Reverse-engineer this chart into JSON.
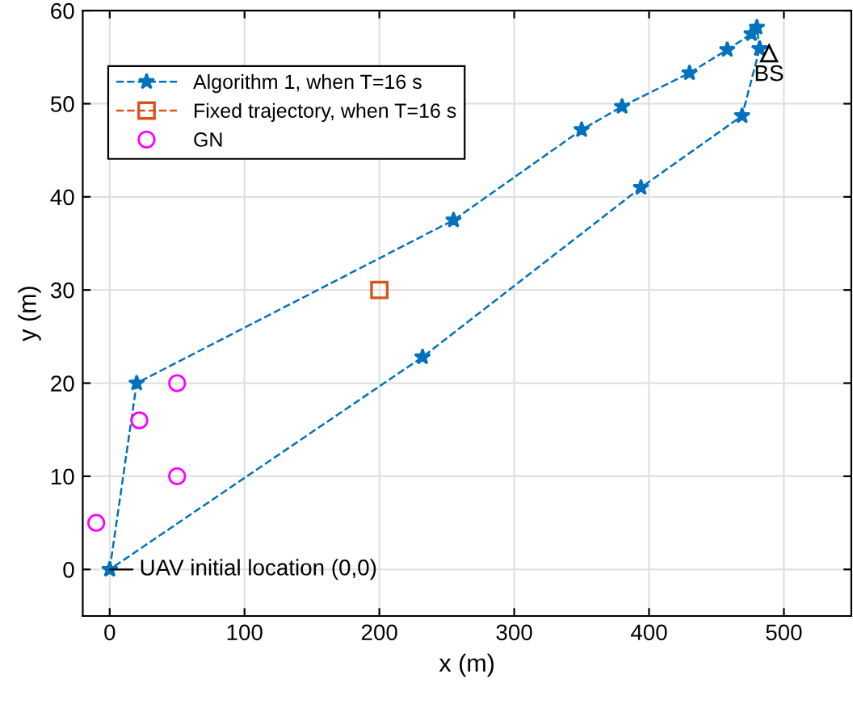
{
  "chart_data": {
    "type": "line",
    "xlabel": "x (m)",
    "ylabel": "y (m)",
    "xlim": [
      -20,
      550
    ],
    "ylim": [
      -5,
      60
    ],
    "xticks": [
      0,
      100,
      200,
      300,
      400,
      500
    ],
    "yticks": [
      0,
      10,
      20,
      30,
      40,
      50,
      60
    ],
    "grid": true,
    "legend": "top left",
    "series": [
      {
        "name": "Algorithm 1, when T=16 s",
        "color": "#0072bd",
        "marker": "star",
        "line_style": "dashed",
        "x": [
          0,
          20,
          255,
          350,
          380,
          430,
          458,
          476,
          480,
          482
        ],
        "values": [
          0,
          20,
          37.5,
          47.2,
          49.7,
          53.3,
          55.8,
          57.5,
          58.2,
          55.9
        ]
      },
      {
        "color": "#0072bd",
        "marker": "star",
        "line_style": "dashed",
        "x": [
          482,
          469,
          394,
          232,
          0
        ],
        "values": [
          55.9,
          48.7,
          41,
          22.8,
          0
        ]
      },
      {
        "name": "Fixed trajectory, when T=16 s",
        "color": "#d95319",
        "marker": "square",
        "line_style": "dashed",
        "x": [
          200
        ],
        "values": [
          30
        ]
      },
      {
        "name": "GN",
        "type": "scatter",
        "color": "#ff00ff",
        "marker": "circle",
        "x": [
          -10,
          22,
          50,
          50
        ],
        "values": [
          5,
          16,
          20,
          10
        ]
      },
      {
        "type": "scatter",
        "color": "#000000",
        "marker": "triangle",
        "x": [
          489
        ],
        "values": [
          55.4
        ]
      }
    ],
    "annotations": [
      {
        "text": "UAV initial location (0,0)",
        "x": 0,
        "y": 0
      },
      {
        "text": "BS",
        "x": 489,
        "y": 55.4
      }
    ]
  }
}
